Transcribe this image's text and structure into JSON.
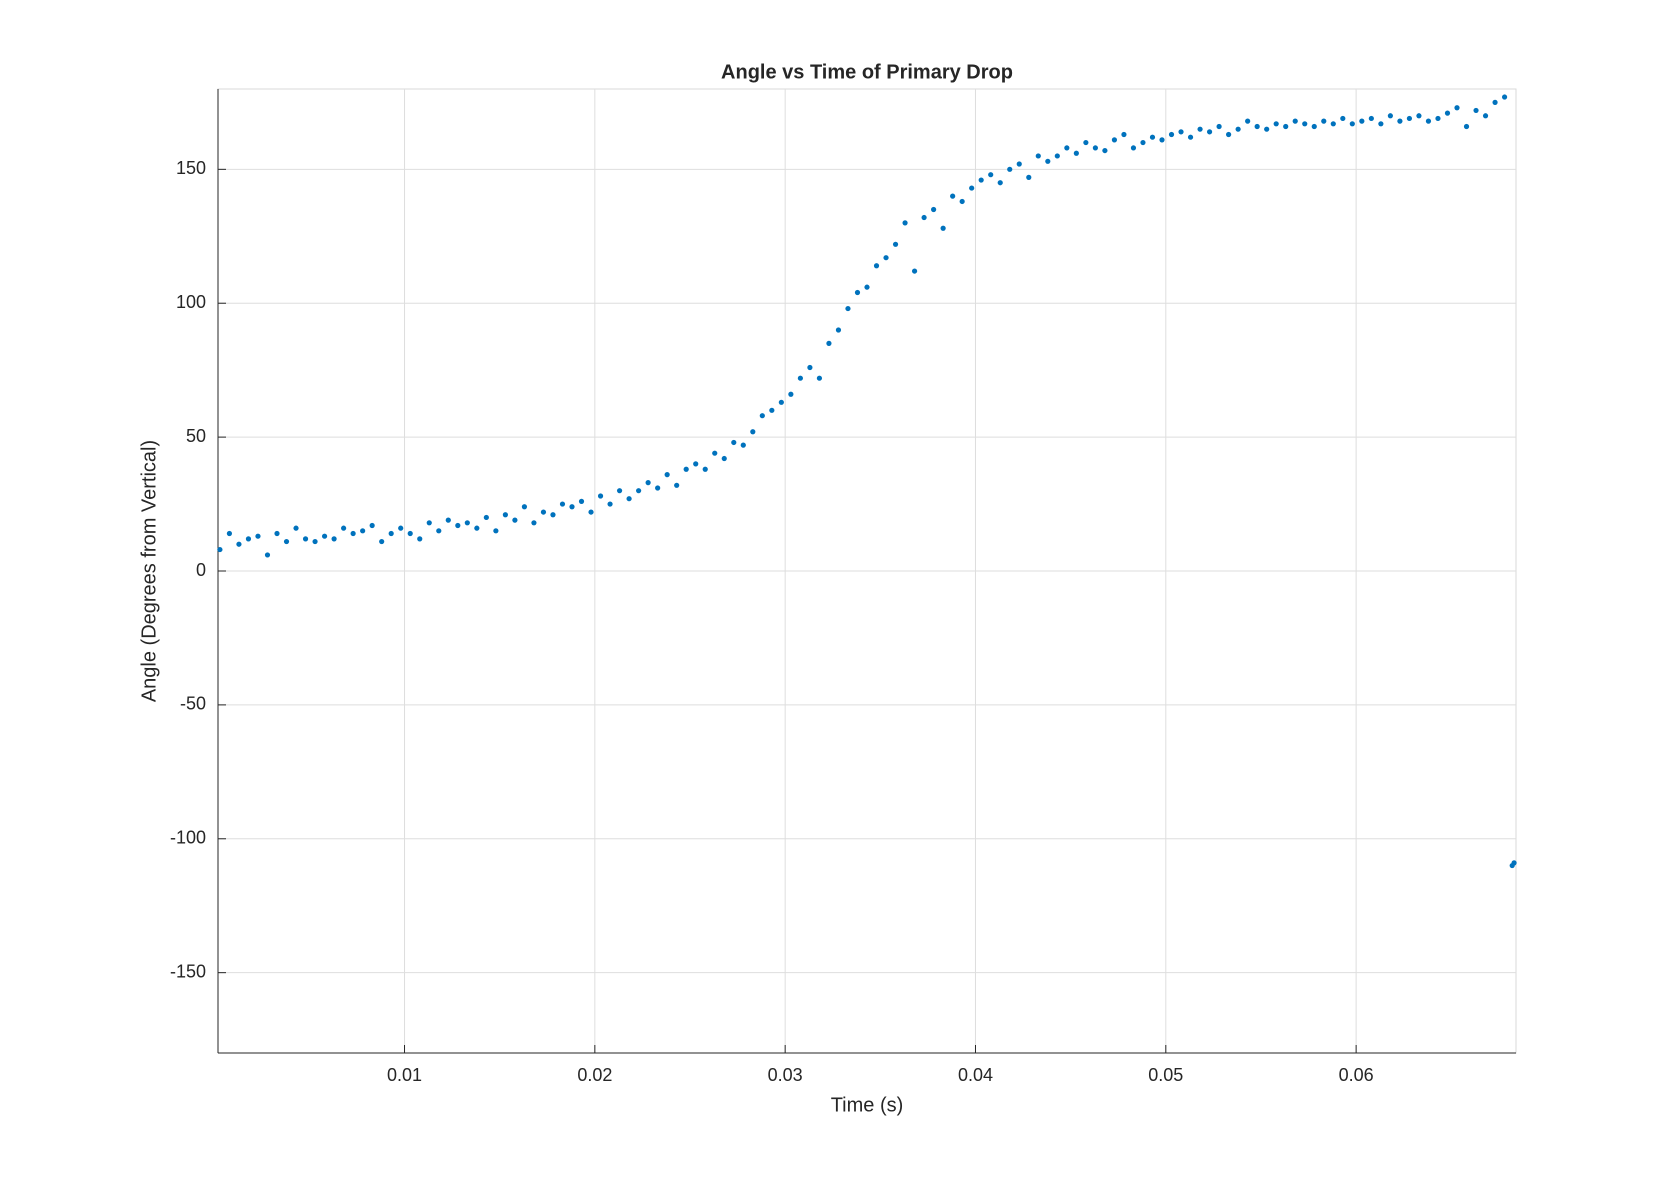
{
  "chart_data": {
    "type": "scatter",
    "title": "Angle vs Time of Primary Drop",
    "x_label": "Time (s)",
    "y_label": "Angle (Degrees from Vertical)",
    "color": "#0072bd",
    "grid": true,
    "xlim": [
      0.0002,
      0.0684
    ],
    "ylim": [
      -180,
      180
    ],
    "xticks": [
      0.01,
      0.02,
      0.03,
      0.04,
      0.05,
      0.06
    ],
    "yticks": [
      -150,
      -100,
      -50,
      0,
      50,
      100,
      150
    ],
    "x": [
      0.0003,
      0.0008,
      0.0013,
      0.0018,
      0.0023,
      0.0028,
      0.0033,
      0.0038,
      0.0043,
      0.0048,
      0.0053,
      0.0058,
      0.0063,
      0.0068,
      0.0073,
      0.0078,
      0.0083,
      0.0088,
      0.0093,
      0.0098,
      0.0103,
      0.0108,
      0.0113,
      0.0118,
      0.0123,
      0.0128,
      0.0133,
      0.0138,
      0.0143,
      0.0148,
      0.0153,
      0.0158,
      0.0163,
      0.0168,
      0.0173,
      0.0178,
      0.0183,
      0.0188,
      0.0193,
      0.0198,
      0.0203,
      0.0208,
      0.0213,
      0.0218,
      0.0223,
      0.0228,
      0.0233,
      0.0238,
      0.0243,
      0.0248,
      0.0253,
      0.0258,
      0.0263,
      0.0268,
      0.0273,
      0.0278,
      0.0283,
      0.0288,
      0.0293,
      0.0298,
      0.0303,
      0.0308,
      0.0313,
      0.0318,
      0.0323,
      0.0328,
      0.0333,
      0.0338,
      0.0343,
      0.0348,
      0.0353,
      0.0358,
      0.0363,
      0.0368,
      0.0373,
      0.0378,
      0.0383,
      0.0388,
      0.0393,
      0.0398,
      0.0403,
      0.0408,
      0.0413,
      0.0418,
      0.0423,
      0.0428,
      0.0433,
      0.0438,
      0.0443,
      0.0448,
      0.0453,
      0.0458,
      0.0463,
      0.0468,
      0.0473,
      0.0478,
      0.0483,
      0.0488,
      0.0493,
      0.0498,
      0.0503,
      0.0508,
      0.0513,
      0.0518,
      0.0523,
      0.0528,
      0.0533,
      0.0538,
      0.0543,
      0.0548,
      0.0553,
      0.0558,
      0.0563,
      0.0568,
      0.0573,
      0.0578,
      0.0583,
      0.0588,
      0.0593,
      0.0598,
      0.0603,
      0.0608,
      0.0613,
      0.0618,
      0.0623,
      0.0628,
      0.0633,
      0.0638,
      0.0643,
      0.0648,
      0.0653,
      0.0658,
      0.0663,
      0.0668,
      0.0673,
      0.0678,
      0.0682,
      0.0683
    ],
    "y": [
      8,
      14,
      10,
      12,
      13,
      6,
      14,
      11,
      16,
      12,
      11,
      13,
      12,
      16,
      14,
      15,
      17,
      11,
      14,
      16,
      14,
      12,
      18,
      15,
      19,
      17,
      18,
      16,
      20,
      15,
      21,
      19,
      24,
      18,
      22,
      21,
      25,
      24,
      26,
      22,
      28,
      25,
      30,
      27,
      30,
      33,
      31,
      36,
      32,
      38,
      40,
      38,
      44,
      42,
      48,
      47,
      52,
      58,
      60,
      63,
      66,
      72,
      76,
      72,
      85,
      90,
      98,
      104,
      106,
      114,
      117,
      122,
      130,
      112,
      132,
      135,
      128,
      140,
      138,
      143,
      146,
      148,
      145,
      150,
      152,
      147,
      155,
      153,
      155,
      158,
      156,
      160,
      158,
      157,
      161,
      163,
      158,
      160,
      162,
      161,
      163,
      164,
      162,
      165,
      164,
      166,
      163,
      165,
      168,
      166,
      165,
      167,
      166,
      168,
      167,
      166,
      168,
      167,
      169,
      167,
      168,
      169,
      167,
      170,
      168,
      169,
      170,
      168,
      169,
      171,
      173,
      166,
      172,
      170,
      175,
      177,
      -110,
      -109
    ]
  }
}
